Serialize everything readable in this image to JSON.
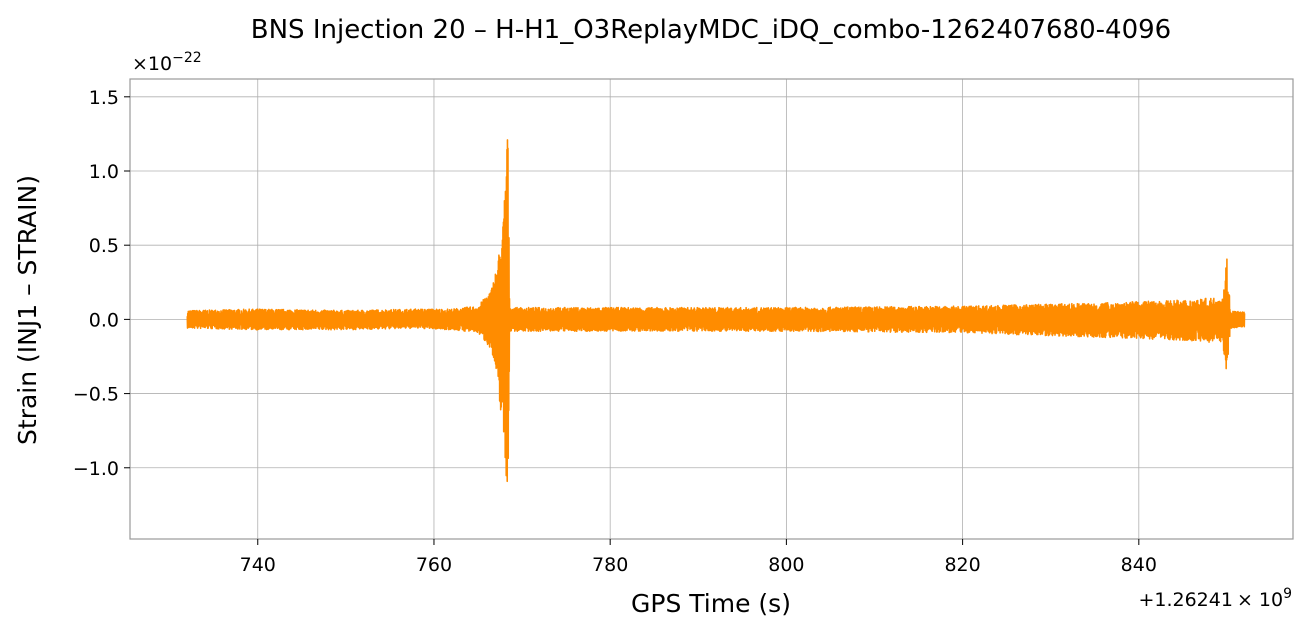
{
  "chart_data": {
    "type": "line",
    "title": "BNS Injection 20 – H-H1_O3ReplayMDC_iDQ_combo-1262407680-4096",
    "xlabel": "GPS Time (s)",
    "ylabel": "Strain (INJ1 – STRAIN)",
    "x_offset_label": "+1.26241",
    "x_offset_exponent": "9",
    "y_scale_label": "×10",
    "y_scale_exponent": "−22",
    "xlim": [
      725.5,
      857.5
    ],
    "ylim": [
      -1.48,
      1.62
    ],
    "grid": true,
    "legend": "none",
    "x_ticks": [
      {
        "value": 740,
        "label": "740"
      },
      {
        "value": 760,
        "label": "760"
      },
      {
        "value": 780,
        "label": "780"
      },
      {
        "value": 800,
        "label": "800"
      },
      {
        "value": 820,
        "label": "820"
      },
      {
        "value": 840,
        "label": "840"
      }
    ],
    "y_ticks": [
      {
        "value": 1.5,
        "label": "1.5"
      },
      {
        "value": 1.0,
        "label": "1.0"
      },
      {
        "value": 0.5,
        "label": "0.5"
      },
      {
        "value": 0.0,
        "label": "0.0"
      },
      {
        "value": -0.5,
        "label": "−0.5"
      },
      {
        "value": -1.0,
        "label": "−1.0"
      }
    ],
    "series": [
      {
        "color": "#ff8c00",
        "x_range": [
          732.0,
          852.0
        ],
        "envelope": [
          {
            "x": 732.0,
            "upper": 0.06,
            "lower": -0.06
          },
          {
            "x": 740.0,
            "upper": 0.07,
            "lower": -0.07
          },
          {
            "x": 750.0,
            "upper": 0.06,
            "lower": -0.07
          },
          {
            "x": 758.0,
            "upper": 0.07,
            "lower": -0.06
          },
          {
            "x": 762.0,
            "upper": 0.07,
            "lower": -0.07
          },
          {
            "x": 765.0,
            "upper": 0.09,
            "lower": -0.09
          },
          {
            "x": 766.5,
            "upper": 0.2,
            "lower": -0.2
          },
          {
            "x": 767.2,
            "upper": 0.38,
            "lower": -0.45
          },
          {
            "x": 767.8,
            "upper": 0.62,
            "lower": -0.72
          },
          {
            "x": 768.1,
            "upper": 0.95,
            "lower": -1.0
          },
          {
            "x": 768.35,
            "upper": 1.48,
            "lower": -1.35
          },
          {
            "x": 768.6,
            "upper": 0.08,
            "lower": -0.08
          },
          {
            "x": 780.0,
            "upper": 0.08,
            "lower": -0.08
          },
          {
            "x": 800.0,
            "upper": 0.08,
            "lower": -0.08
          },
          {
            "x": 820.0,
            "upper": 0.09,
            "lower": -0.09
          },
          {
            "x": 835.0,
            "upper": 0.11,
            "lower": -0.12
          },
          {
            "x": 845.0,
            "upper": 0.13,
            "lower": -0.14
          },
          {
            "x": 849.5,
            "upper": 0.15,
            "lower": -0.16
          },
          {
            "x": 850.0,
            "upper": 0.43,
            "lower": -0.37
          },
          {
            "x": 850.4,
            "upper": 0.06,
            "lower": -0.06
          },
          {
            "x": 852.0,
            "upper": 0.05,
            "lower": -0.05
          }
        ]
      }
    ]
  }
}
